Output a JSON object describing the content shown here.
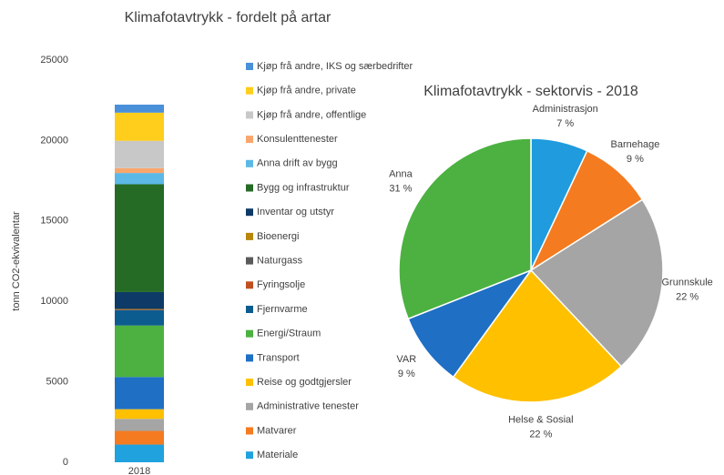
{
  "chart_data": [
    {
      "type": "stacked_bar",
      "title": "Klimafotavtrykk - fordelt på artar",
      "y_label": "tonn CO2-ekvivalentar",
      "categories": [
        "2018"
      ],
      "ylim": [
        0,
        25000
      ],
      "yticks": [
        0,
        5000,
        10000,
        15000,
        20000,
        25000
      ],
      "series": [
        {
          "name": "Materiale",
          "color": "#1fa2dd",
          "values": [
            1100
          ]
        },
        {
          "name": "Matvarer",
          "color": "#f47b20",
          "values": [
            850
          ]
        },
        {
          "name": "Administrative tenester",
          "color": "#a5a5a5",
          "values": [
            750
          ]
        },
        {
          "name": "Reise og godtgjersler",
          "color": "#ffc000",
          "values": [
            600
          ]
        },
        {
          "name": "Transport",
          "color": "#1f6fc5",
          "values": [
            2000
          ]
        },
        {
          "name": "Energi/Straum",
          "color": "#4cb140",
          "values": [
            3200
          ]
        },
        {
          "name": "Fjernvarme",
          "color": "#0d5c8f",
          "values": [
            950
          ]
        },
        {
          "name": "Fyringsolje",
          "color": "#c0501f",
          "values": [
            30
          ]
        },
        {
          "name": "Naturgass",
          "color": "#5a5a5a",
          "values": [
            20
          ]
        },
        {
          "name": "Bioenergi",
          "color": "#b8860b",
          "values": [
            30
          ]
        },
        {
          "name": "Inventar og utstyr",
          "color": "#0d3a66",
          "values": [
            1050
          ]
        },
        {
          "name": "Bygg og infrastruktur",
          "color": "#266b25",
          "values": [
            6700
          ]
        },
        {
          "name": "Anna drift av bygg",
          "color": "#5cb8e6",
          "values": [
            700
          ]
        },
        {
          "name": "Konsulenttenester",
          "color": "#f9a66c",
          "values": [
            300
          ]
        },
        {
          "name": "Kjøp frå andre, offentlige",
          "color": "#c8c8c8",
          "values": [
            1700
          ]
        },
        {
          "name": "Kjøp frå andre, private",
          "color": "#ffcd1c",
          "values": [
            1750
          ]
        },
        {
          "name": "Kjøp frå andre, IKS og særbedrifter",
          "color": "#4a90d9",
          "values": [
            500
          ]
        }
      ]
    },
    {
      "type": "pie",
      "title": "Klimafotavtrykk - sektorvis - 2018",
      "categories": [
        "Administrasjon",
        "Barnehage",
        "Grunnskule",
        "Helse & Sosial",
        "VAR",
        "Anna"
      ],
      "values": [
        7,
        9,
        22,
        22,
        9,
        31
      ],
      "value_labels": [
        "7 %",
        "9 %",
        "22 %",
        "22 %",
        "9 %",
        "31 %"
      ],
      "colors": [
        "#1f9bde",
        "#f47b20",
        "#a5a5a5",
        "#ffc000",
        "#1f6fc5",
        "#4cb140"
      ]
    }
  ]
}
